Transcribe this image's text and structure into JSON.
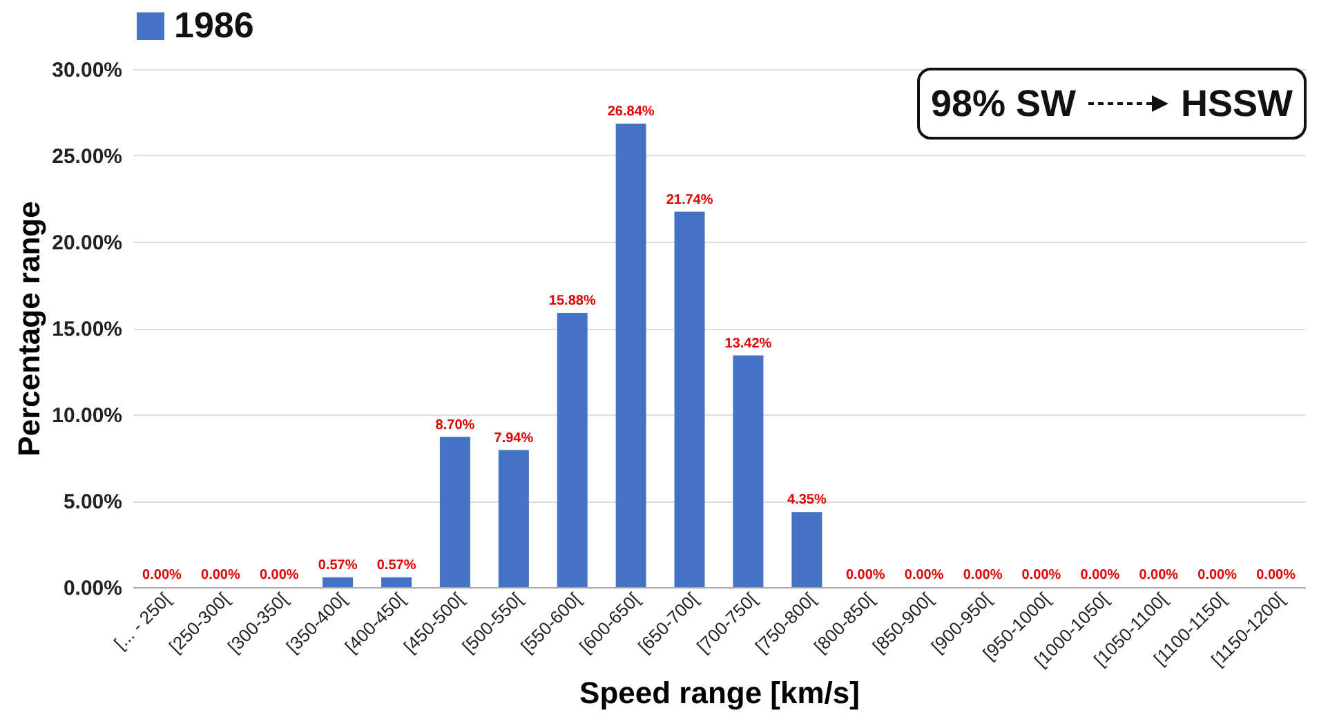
{
  "chart_data": {
    "type": "bar",
    "xlabel": "Speed range [km/s]",
    "ylabel": "Percentage range",
    "categories": [
      "[... - 250[",
      "[250-300[",
      "[300-350[",
      "[350-400[",
      "[400-450[",
      "[450-500[",
      "[500-550[",
      "[550-600[",
      "[600-650[",
      "[650-700[",
      "[700-750[",
      "[750-800[",
      "[800-850[",
      "[850-900[",
      "[900-950[",
      "[950-1000[",
      "[1000-1050[",
      "[1050-1100[",
      "[1100-1150[",
      "[1150-1200["
    ],
    "series": [
      {
        "name": "1986",
        "color": "#4472c4",
        "values": [
          0,
          0,
          0,
          0.57,
          0.57,
          8.7,
          7.94,
          15.88,
          26.84,
          21.74,
          13.42,
          4.35,
          0,
          0,
          0,
          0,
          0,
          0,
          0,
          0
        ],
        "value_labels": [
          "0.00%",
          "0.00%",
          "0.00%",
          "0.57%",
          "0.57%",
          "8.70%",
          "7.94%",
          "15.88%",
          "26.84%",
          "21.74%",
          "13.42%",
          "4.35%",
          "0.00%",
          "0.00%",
          "0.00%",
          "0.00%",
          "0.00%",
          "0.00%",
          "0.00%",
          "0.00%"
        ]
      }
    ],
    "ylim": [
      0,
      30
    ],
    "yticks": [
      {
        "value": 0,
        "label": "0.00%"
      },
      {
        "value": 5,
        "label": "5.00%"
      },
      {
        "value": 10,
        "label": "10.00%"
      },
      {
        "value": 15,
        "label": "15.00%"
      },
      {
        "value": 20,
        "label": "20.00%"
      },
      {
        "value": 25,
        "label": "25.00%"
      },
      {
        "value": 30,
        "label": "30.00%"
      }
    ],
    "grid": "y",
    "legend": "top",
    "annotations": [
      "98% SW",
      "HSSW"
    ]
  }
}
